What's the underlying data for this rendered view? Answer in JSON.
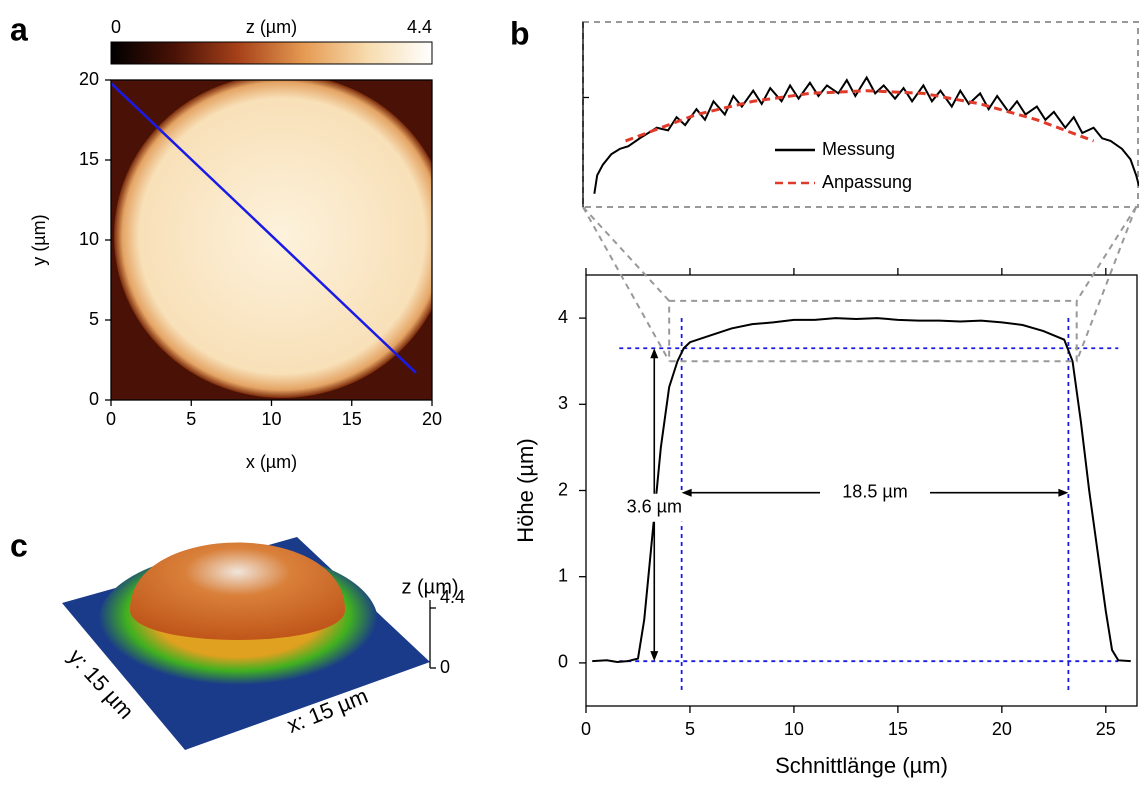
{
  "chart_data": [
    {
      "type": "heatmap",
      "panel_label": "a",
      "xlabel": "x (µm)",
      "ylabel": "y (µm)",
      "xlim": [
        0,
        20
      ],
      "ylim": [
        0,
        20
      ],
      "xticks": [
        0,
        5,
        10,
        15,
        20
      ],
      "yticks": [
        0,
        5,
        10,
        15,
        20
      ],
      "colorbar": {
        "label": "z (µm)",
        "lim": [
          0,
          4.4
        ],
        "ticks": [
          0,
          4.4
        ]
      },
      "colormap": [
        "#000000",
        "#4a1206",
        "#a8421a",
        "#e59a52",
        "#f7dcae",
        "#ffffff"
      ],
      "cut_line": {
        "x": [
          0,
          19
        ],
        "y": [
          19.8,
          1.7
        ],
        "color": "#1a1ae6"
      }
    },
    {
      "type": "line",
      "panel_label": "b",
      "xlabel": "Schnittlänge (µm)",
      "ylabel": "Höhe (µm)",
      "xlim": [
        0,
        26.5
      ],
      "ylim": [
        -0.5,
        4.5
      ],
      "xticks": [
        0,
        5,
        10,
        15,
        20,
        25
      ],
      "yticks": [
        0,
        1,
        2,
        3,
        4
      ],
      "color": "#000000",
      "x": [
        0.3,
        1.0,
        1.5,
        2.0,
        2.5,
        2.8,
        3.2,
        3.6,
        4.0,
        4.4,
        4.7,
        5.0,
        6,
        7,
        8,
        9,
        10,
        11,
        12,
        13,
        14,
        15,
        16,
        17,
        18,
        19,
        20,
        21,
        22,
        23,
        23.4,
        23.8,
        24.2,
        24.6,
        25.0,
        25.3,
        25.6,
        26.2
      ],
      "values": [
        0.02,
        0.03,
        0.01,
        0.02,
        0.05,
        0.5,
        1.5,
        2.5,
        3.2,
        3.5,
        3.65,
        3.72,
        3.8,
        3.88,
        3.93,
        3.95,
        3.98,
        3.98,
        4.0,
        3.99,
        4.0,
        3.98,
        3.97,
        3.97,
        3.96,
        3.97,
        3.95,
        3.92,
        3.85,
        3.75,
        3.5,
        2.8,
        2.0,
        1.3,
        0.6,
        0.15,
        0.03,
        0.02
      ],
      "reference_lines": {
        "h": [
          3.65,
          0.02
        ],
        "v": [
          4.6,
          23.2
        ],
        "span": [
          1.6,
          25.6
        ],
        "color": "#1a1ae6"
      },
      "annotations": [
        "3.6 µm",
        "18.5 µm"
      ]
    },
    {
      "type": "line",
      "xlim": [
        4.0,
        23.6
      ],
      "ylim": [
        3.5,
        4.2
      ],
      "series": [
        {
          "name": "Messung",
          "color": "#000000",
          "style": "solid",
          "x": [
            4.4,
            4.5,
            4.7,
            5.0,
            5.3,
            5.6,
            6.0,
            6.3,
            6.6,
            7.0,
            7.3,
            7.6,
            8.0,
            8.3,
            8.6,
            9.0,
            9.3,
            9.6,
            10.0,
            10.3,
            10.6,
            11.0,
            11.3,
            11.6,
            12.0,
            12.3,
            12.6,
            13.0,
            13.3,
            13.6,
            14.0,
            14.3,
            14.6,
            15.0,
            15.3,
            15.6,
            16.0,
            16.3,
            16.6,
            17.0,
            17.3,
            17.6,
            18.0,
            18.3,
            18.6,
            19.0,
            19.3,
            19.6,
            20.0,
            20.3,
            20.6,
            21.0,
            21.3,
            21.6,
            22.0,
            22.3,
            22.6,
            23.0,
            23.3,
            23.5,
            23.6
          ],
          "values": [
            3.55,
            3.62,
            3.66,
            3.7,
            3.72,
            3.73,
            3.76,
            3.78,
            3.8,
            3.79,
            3.84,
            3.81,
            3.87,
            3.83,
            3.9,
            3.85,
            3.92,
            3.88,
            3.94,
            3.89,
            3.95,
            3.9,
            3.96,
            3.91,
            3.97,
            3.92,
            3.96,
            3.93,
            3.98,
            3.92,
            3.99,
            3.93,
            3.96,
            3.91,
            3.95,
            3.9,
            3.96,
            3.9,
            3.94,
            3.88,
            3.94,
            3.89,
            3.93,
            3.87,
            3.92,
            3.86,
            3.9,
            3.85,
            3.88,
            3.83,
            3.86,
            3.8,
            3.84,
            3.78,
            3.8,
            3.76,
            3.75,
            3.72,
            3.68,
            3.62,
            3.58
          ]
        },
        {
          "name": "Anpassung",
          "color": "#e03a2a",
          "style": "dashed",
          "x": [
            5.5,
            8,
            10,
            12,
            14,
            16,
            18,
            20,
            22
          ],
          "values": [
            3.75,
            3.85,
            3.9,
            3.93,
            3.94,
            3.93,
            3.89,
            3.83,
            3.75
          ]
        }
      ]
    },
    {
      "type": "surface3d",
      "panel_label": "c",
      "zlabel": "z (µm)",
      "zlim": [
        0,
        4.4
      ],
      "zticks": [
        0,
        4.4
      ],
      "xlabel": "x: 15 µm",
      "ylabel": "y: 15 µm"
    }
  ]
}
